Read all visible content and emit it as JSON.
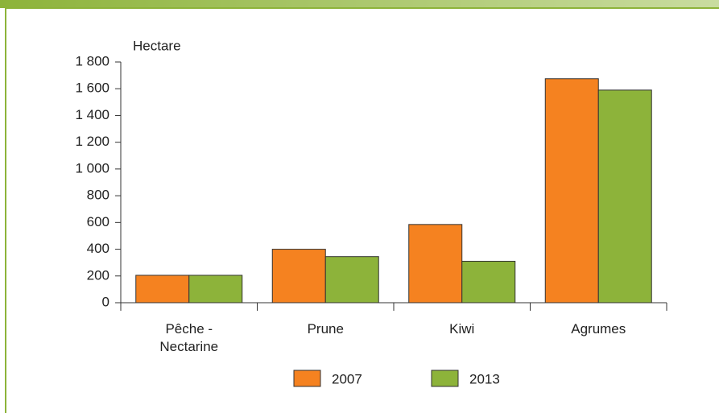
{
  "chart_data": {
    "type": "bar",
    "y_label": "Hectare",
    "categories": [
      "Pêche - Nectarine",
      "Prune",
      "Kiwi",
      "Agrumes"
    ],
    "series": [
      {
        "name": "2007",
        "color": "#f58220",
        "values": [
          205,
          400,
          585,
          1675
        ]
      },
      {
        "name": "2013",
        "color": "#8db33a",
        "values": [
          205,
          345,
          310,
          1590
        ]
      }
    ],
    "ylim": [
      0,
      1800
    ],
    "yticks": [
      0,
      200,
      400,
      600,
      800,
      {
        "value": 1000,
        "label": "1 000"
      },
      {
        "value": 1200,
        "label": "1 200"
      },
      {
        "value": 1400,
        "label": "1 400"
      },
      {
        "value": 1600,
        "label": "1 600"
      },
      {
        "value": 1800,
        "label": "1 800"
      }
    ],
    "grid": false,
    "legend": "bottom"
  }
}
